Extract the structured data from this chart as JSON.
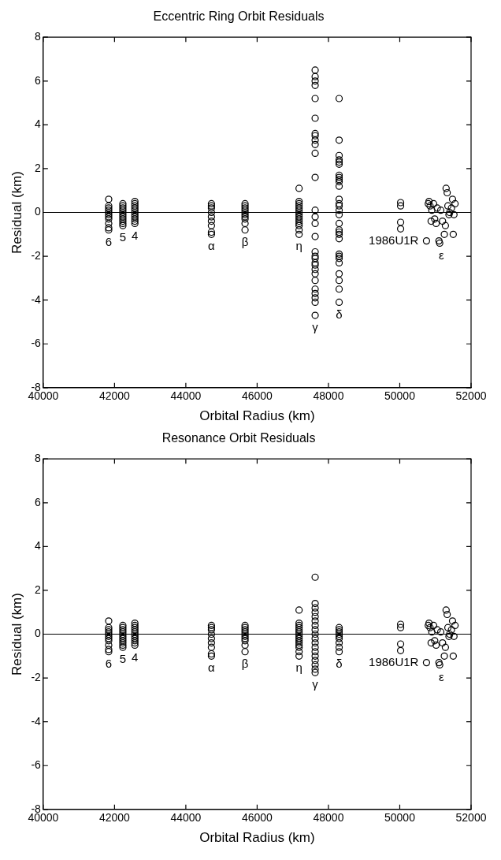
{
  "chart_data": [
    {
      "type": "scatter",
      "title": "Eccentric Ring Orbit Residuals",
      "xlabel": "Orbital Radius (km)",
      "ylabel": "Residual (km)",
      "xlim": [
        40000,
        52000
      ],
      "xticks": [
        40000,
        42000,
        44000,
        46000,
        48000,
        50000,
        52000
      ],
      "ylim": [
        -8,
        8
      ],
      "yticks": [
        -8,
        -6,
        -4,
        -2,
        0,
        2,
        4,
        6,
        8
      ],
      "marker": "circle",
      "grid": false,
      "ref_lines": [
        {
          "axis": "y",
          "value": 0
        }
      ],
      "series": [
        {
          "name": "6",
          "color": "#000000",
          "x": [
            41837,
            41837,
            41837,
            41837,
            41837,
            41837,
            41837,
            41837,
            41837,
            41837,
            41837
          ],
          "values": [
            0.6,
            0.3,
            0.2,
            0.1,
            0,
            -0.1,
            -0.2,
            -0.3,
            -0.5,
            -0.7,
            -0.8
          ]
        },
        {
          "name": "5",
          "color": "#000000",
          "x": [
            42234,
            42234,
            42234,
            42234,
            42234,
            42234,
            42234,
            42234,
            42234,
            42234,
            42234
          ],
          "values": [
            0.4,
            0.3,
            0.2,
            0.1,
            0,
            -0.1,
            -0.2,
            -0.3,
            -0.4,
            -0.5,
            -0.6
          ]
        },
        {
          "name": "4",
          "color": "#000000",
          "x": [
            42571,
            42571,
            42571,
            42571,
            42571,
            42571,
            42571,
            42571,
            42571,
            42571,
            42571
          ],
          "values": [
            0.5,
            0.4,
            0.3,
            0.2,
            0.1,
            0,
            -0.1,
            -0.2,
            -0.3,
            -0.4,
            -0.5
          ]
        },
        {
          "name": "α",
          "color": "#000000",
          "x": [
            44718,
            44718,
            44718,
            44718,
            44718,
            44718,
            44718,
            44718,
            44718
          ],
          "values": [
            0.4,
            0.3,
            0.2,
            0,
            -0.2,
            -0.4,
            -0.6,
            -0.9,
            -1.0
          ]
        },
        {
          "name": "β",
          "color": "#000000",
          "x": [
            45661,
            45661,
            45661,
            45661,
            45661,
            45661,
            45661,
            45661,
            45661,
            45661
          ],
          "values": [
            0.4,
            0.3,
            0.2,
            0.1,
            0,
            -0.1,
            -0.2,
            -0.3,
            -0.5,
            -0.8
          ]
        },
        {
          "name": "η",
          "color": "#000000",
          "x": [
            47176,
            47176,
            47176,
            47176,
            47176,
            47176,
            47176,
            47176,
            47176,
            47176,
            47176,
            47176,
            47176,
            47176,
            47176
          ],
          "values": [
            1.1,
            0.5,
            0.4,
            0.3,
            0.2,
            0.1,
            0,
            -0.1,
            -0.2,
            -0.3,
            -0.4,
            -0.5,
            -0.6,
            -0.8,
            -1.0
          ]
        },
        {
          "name": "γ",
          "color": "#000000",
          "x": [
            47627,
            47627,
            47627,
            47627,
            47627,
            47627,
            47627,
            47627,
            47627,
            47627,
            47627,
            47627,
            47627,
            47627,
            47627,
            47627,
            47627,
            47627,
            47627,
            47627,
            47627,
            47627,
            47627,
            47627,
            47627,
            47627,
            47627,
            47627,
            47627
          ],
          "values": [
            6.5,
            6.2,
            6.0,
            5.8,
            5.2,
            4.3,
            3.6,
            3.5,
            3.3,
            3.1,
            2.7,
            1.6,
            0.1,
            -0.2,
            -0.5,
            -1.1,
            -1.8,
            -2.0,
            -2.1,
            -2.3,
            -2.4,
            -2.6,
            -2.8,
            -3.1,
            -3.5,
            -3.7,
            -3.9,
            -4.1,
            -4.7
          ]
        },
        {
          "name": "δ",
          "color": "#000000",
          "x": [
            48300,
            48300,
            48300,
            48300,
            48300,
            48300,
            48300,
            48300,
            48300,
            48300,
            48300,
            48300,
            48300,
            48300,
            48300,
            48300,
            48300,
            48300,
            48300,
            48300,
            48300,
            48300,
            48300,
            48300,
            48300,
            48300,
            48300,
            48300,
            48300
          ],
          "values": [
            5.2,
            3.3,
            2.6,
            2.4,
            2.3,
            2.2,
            1.7,
            1.6,
            1.5,
            1.4,
            1.2,
            0.6,
            0.4,
            0.3,
            0.1,
            -0.1,
            -0.5,
            -0.8,
            -0.9,
            -1.0,
            -1.2,
            -1.9,
            -2.0,
            -2.1,
            -2.3,
            -2.8,
            -3.1,
            -3.5,
            -4.1
          ]
        },
        {
          "name": "1986U1R",
          "color": "#000000",
          "x": [
            50024,
            50024,
            50024,
            50024
          ],
          "values": [
            0.45,
            0.3,
            -0.45,
            -0.75
          ]
        },
        {
          "name": "ε",
          "color": "#000000",
          "x": [
            50750,
            50800,
            50820,
            50850,
            50880,
            50900,
            50950,
            50980,
            51020,
            51050,
            51100,
            51120,
            51150,
            51200,
            51250,
            51280,
            51300,
            51330,
            51350,
            51380,
            51400,
            51450,
            51480,
            51500,
            51520,
            51550
          ],
          "values": [
            -1.3,
            0.4,
            0.5,
            0.3,
            -0.4,
            0.1,
            0.4,
            -0.3,
            -0.5,
            0.2,
            -1.3,
            -1.4,
            0.1,
            -0.4,
            -1.0,
            -0.6,
            1.1,
            0.9,
            0.3,
            -0.1,
            0,
            0.2,
            0.6,
            -1.0,
            -0.1,
            0.4
          ]
        }
      ]
    },
    {
      "type": "scatter",
      "title": "Resonance Orbit Residuals",
      "xlabel": "Orbital Radius (km)",
      "ylabel": "Residual (km)",
      "xlim": [
        40000,
        52000
      ],
      "xticks": [
        40000,
        42000,
        44000,
        46000,
        48000,
        50000,
        52000
      ],
      "ylim": [
        -8,
        8
      ],
      "yticks": [
        -8,
        -6,
        -4,
        -2,
        0,
        2,
        4,
        6,
        8
      ],
      "marker": "circle",
      "grid": false,
      "ref_lines": [
        {
          "axis": "y",
          "value": 0
        }
      ],
      "series": [
        {
          "name": "6",
          "color": "#000000",
          "x": [
            41837,
            41837,
            41837,
            41837,
            41837,
            41837,
            41837,
            41837,
            41837,
            41837,
            41837
          ],
          "values": [
            0.6,
            0.3,
            0.2,
            0.1,
            0,
            -0.1,
            -0.2,
            -0.3,
            -0.5,
            -0.7,
            -0.8
          ]
        },
        {
          "name": "5",
          "color": "#000000",
          "x": [
            42234,
            42234,
            42234,
            42234,
            42234,
            42234,
            42234,
            42234,
            42234,
            42234,
            42234
          ],
          "values": [
            0.4,
            0.3,
            0.2,
            0.1,
            0,
            -0.1,
            -0.2,
            -0.3,
            -0.4,
            -0.5,
            -0.6
          ]
        },
        {
          "name": "4",
          "color": "#000000",
          "x": [
            42571,
            42571,
            42571,
            42571,
            42571,
            42571,
            42571,
            42571,
            42571,
            42571,
            42571
          ],
          "values": [
            0.5,
            0.4,
            0.3,
            0.2,
            0.1,
            0,
            -0.1,
            -0.2,
            -0.3,
            -0.4,
            -0.5
          ]
        },
        {
          "name": "α",
          "color": "#000000",
          "x": [
            44718,
            44718,
            44718,
            44718,
            44718,
            44718,
            44718,
            44718,
            44718
          ],
          "values": [
            0.4,
            0.3,
            0.2,
            0,
            -0.2,
            -0.4,
            -0.6,
            -0.9,
            -1.0
          ]
        },
        {
          "name": "β",
          "color": "#000000",
          "x": [
            45661,
            45661,
            45661,
            45661,
            45661,
            45661,
            45661,
            45661,
            45661,
            45661
          ],
          "values": [
            0.4,
            0.3,
            0.2,
            0.1,
            0,
            -0.1,
            -0.2,
            -0.3,
            -0.5,
            -0.8
          ]
        },
        {
          "name": "η",
          "color": "#000000",
          "x": [
            47176,
            47176,
            47176,
            47176,
            47176,
            47176,
            47176,
            47176,
            47176,
            47176,
            47176,
            47176,
            47176,
            47176,
            47176
          ],
          "values": [
            1.1,
            0.5,
            0.4,
            0.3,
            0.2,
            0.1,
            0,
            -0.1,
            -0.2,
            -0.3,
            -0.4,
            -0.5,
            -0.6,
            -0.8,
            -1.0
          ]
        },
        {
          "name": "γ",
          "color": "#000000",
          "x": [
            47627,
            47627,
            47627,
            47627,
            47627,
            47627,
            47627,
            47627,
            47627,
            47627,
            47627,
            47627,
            47627,
            47627,
            47627,
            47627,
            47627,
            47627
          ],
          "values": [
            2.6,
            1.4,
            1.2,
            1.0,
            0.8,
            0.6,
            0.4,
            0.2,
            0,
            -0.2,
            -0.4,
            -0.6,
            -0.8,
            -1.0,
            -1.2,
            -1.4,
            -1.6,
            -1.75
          ]
        },
        {
          "name": "δ",
          "color": "#000000",
          "x": [
            48300,
            48300,
            48300,
            48300,
            48300,
            48300,
            48300,
            48300,
            48300
          ],
          "values": [
            0.3,
            0.2,
            0.1,
            0,
            -0.1,
            -0.2,
            -0.4,
            -0.6,
            -0.8
          ]
        },
        {
          "name": "1986U1R",
          "color": "#000000",
          "x": [
            50024,
            50024,
            50024,
            50024
          ],
          "values": [
            0.45,
            0.3,
            -0.45,
            -0.75
          ]
        },
        {
          "name": "ε",
          "color": "#000000",
          "x": [
            50750,
            50800,
            50820,
            50850,
            50880,
            50900,
            50950,
            50980,
            51020,
            51050,
            51100,
            51120,
            51150,
            51200,
            51250,
            51280,
            51300,
            51330,
            51350,
            51380,
            51400,
            51450,
            51480,
            51500,
            51520,
            51550
          ],
          "values": [
            -1.3,
            0.4,
            0.5,
            0.3,
            -0.4,
            0.1,
            0.4,
            -0.3,
            -0.5,
            0.2,
            -1.3,
            -1.4,
            0.1,
            -0.4,
            -1.0,
            -0.6,
            1.1,
            0.9,
            0.3,
            -0.1,
            0,
            0.2,
            0.6,
            -1.0,
            -0.1,
            0.4
          ]
        }
      ]
    }
  ]
}
